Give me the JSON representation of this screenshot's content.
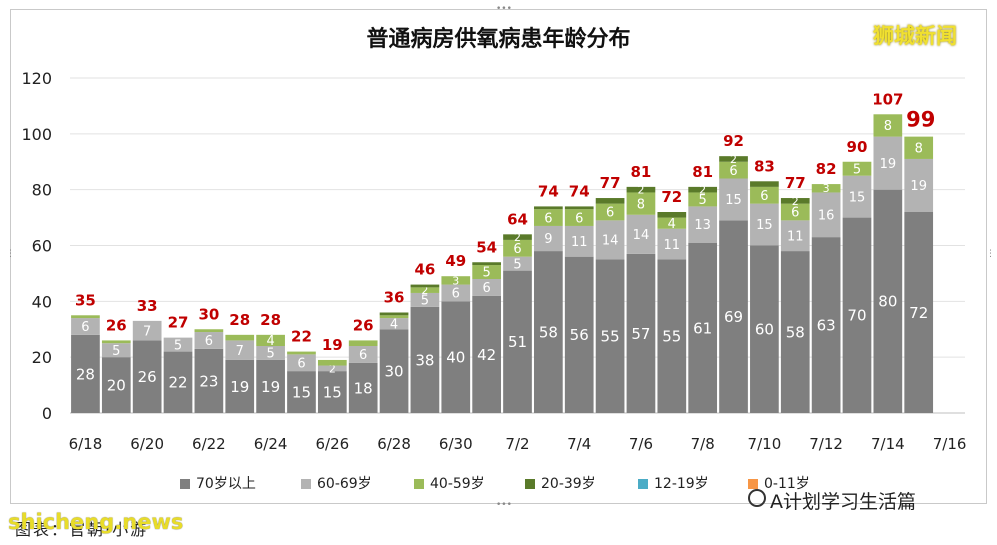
{
  "title": "普通病房供氧病患年龄分布",
  "brand_top_right": "狮城新闻",
  "source_label": "图表：官朝·小游",
  "watermark_bottom_left": "shicheng.news",
  "watermark_bottom_right": "A计划学习生活篇",
  "colors": {
    "age70plus": "#7f7f7f",
    "age60_69": "#b3b3b3",
    "age40_59": "#9bbb59",
    "age20_39": "#5a7a2a",
    "age12_19": "#4bacc6",
    "age0_11": "#f79646",
    "total_label": "#c00000"
  },
  "legend": [
    {
      "key": "age70plus",
      "label": "70岁以上"
    },
    {
      "key": "age60_69",
      "label": "60-69岁"
    },
    {
      "key": "age40_59",
      "label": "40-59岁"
    },
    {
      "key": "age20_39",
      "label": "20-39岁"
    },
    {
      "key": "age12_19",
      "label": "12-19岁"
    },
    {
      "key": "age0_11",
      "label": "0-11岁"
    }
  ],
  "chart_data": {
    "type": "bar",
    "stacked": true,
    "categories": [
      "6/18",
      "6/19",
      "6/20",
      "6/21",
      "6/22",
      "6/23",
      "6/24",
      "6/25",
      "6/26",
      "6/27",
      "6/28",
      "6/29",
      "6/30",
      "7/1",
      "7/2",
      "7/3",
      "7/4",
      "7/5",
      "7/6",
      "7/7",
      "7/8",
      "7/9",
      "7/10",
      "7/11",
      "7/12",
      "7/13",
      "7/14",
      "7/15"
    ],
    "x_tick_labels": [
      "6/18",
      "6/20",
      "6/22",
      "6/24",
      "6/26",
      "6/28",
      "6/30",
      "7/2",
      "7/4",
      "7/6",
      "7/8",
      "7/10",
      "7/12",
      "7/14",
      "7/16"
    ],
    "ylim": [
      0,
      120
    ],
    "yticks": [
      0,
      20,
      40,
      60,
      80,
      100,
      120
    ],
    "grid": true,
    "legend_position": "bottom",
    "series": [
      {
        "name": "70岁以上",
        "key": "age70plus",
        "values": [
          28,
          20,
          26,
          22,
          23,
          19,
          19,
          15,
          15,
          18,
          30,
          38,
          40,
          42,
          51,
          58,
          56,
          55,
          57,
          55,
          61,
          69,
          60,
          58,
          63,
          70,
          80,
          72
        ]
      },
      {
        "name": "60-69岁",
        "key": "age60_69",
        "values": [
          6,
          5,
          7,
          5,
          6,
          7,
          5,
          6,
          2,
          6,
          4,
          5,
          6,
          6,
          5,
          9,
          11,
          14,
          14,
          11,
          13,
          15,
          15,
          11,
          16,
          15,
          19,
          19
        ]
      },
      {
        "name": "40-59岁",
        "key": "age40_59",
        "values": [
          1,
          1,
          0,
          0,
          1,
          2,
          4,
          1,
          2,
          2,
          1,
          2,
          3,
          5,
          6,
          6,
          6,
          6,
          8,
          4,
          5,
          6,
          6,
          6,
          3,
          5,
          8,
          8
        ]
      },
      {
        "name": "20-39岁",
        "key": "age20_39",
        "values": [
          0,
          0,
          0,
          0,
          0,
          0,
          0,
          0,
          0,
          0,
          1,
          1,
          0,
          1,
          2,
          1,
          1,
          2,
          2,
          2,
          2,
          2,
          2,
          2,
          0,
          0,
          0,
          0
        ]
      },
      {
        "name": "12-19岁",
        "key": "age12_19",
        "values": [
          0,
          0,
          0,
          0,
          0,
          0,
          0,
          0,
          0,
          0,
          0,
          0,
          0,
          0,
          0,
          0,
          0,
          0,
          0,
          0,
          0,
          0,
          0,
          0,
          0,
          0,
          0,
          0
        ]
      },
      {
        "name": "0-11岁",
        "key": "age0_11",
        "values": [
          0,
          0,
          0,
          0,
          0,
          0,
          0,
          0,
          0,
          0,
          0,
          0,
          0,
          0,
          0,
          0,
          0,
          0,
          0,
          0,
          0,
          0,
          0,
          0,
          0,
          0,
          0,
          0
        ]
      }
    ],
    "totals": [
      35,
      26,
      33,
      27,
      30,
      28,
      28,
      22,
      19,
      26,
      36,
      46,
      49,
      54,
      64,
      74,
      74,
      77,
      81,
      72,
      81,
      92,
      83,
      77,
      82,
      90,
      107,
      99
    ],
    "segment_labels": {
      "age70plus": [
        28,
        20,
        26,
        22,
        23,
        19,
        19,
        15,
        15,
        18,
        30,
        38,
        40,
        42,
        51,
        58,
        56,
        55,
        57,
        55,
        61,
        69,
        60,
        58,
        63,
        70,
        80,
        72
      ],
      "age60_69": [
        6,
        5,
        7,
        5,
        6,
        7,
        5,
        6,
        2,
        6,
        4,
        5,
        6,
        6,
        5,
        9,
        11,
        14,
        14,
        11,
        13,
        15,
        15,
        11,
        16,
        15,
        19,
        19
      ],
      "age40_59": [
        null,
        null,
        null,
        null,
        null,
        null,
        4,
        null,
        null,
        null,
        null,
        2,
        3,
        5,
        6,
        6,
        6,
        6,
        8,
        4,
        5,
        6,
        6,
        6,
        3,
        5,
        8,
        8
      ],
      "age20_39": [
        null,
        null,
        null,
        null,
        null,
        null,
        null,
        null,
        null,
        null,
        null,
        null,
        null,
        null,
        2,
        null,
        null,
        null,
        2,
        null,
        2,
        2,
        null,
        2,
        null,
        null,
        null,
        null
      ]
    }
  }
}
